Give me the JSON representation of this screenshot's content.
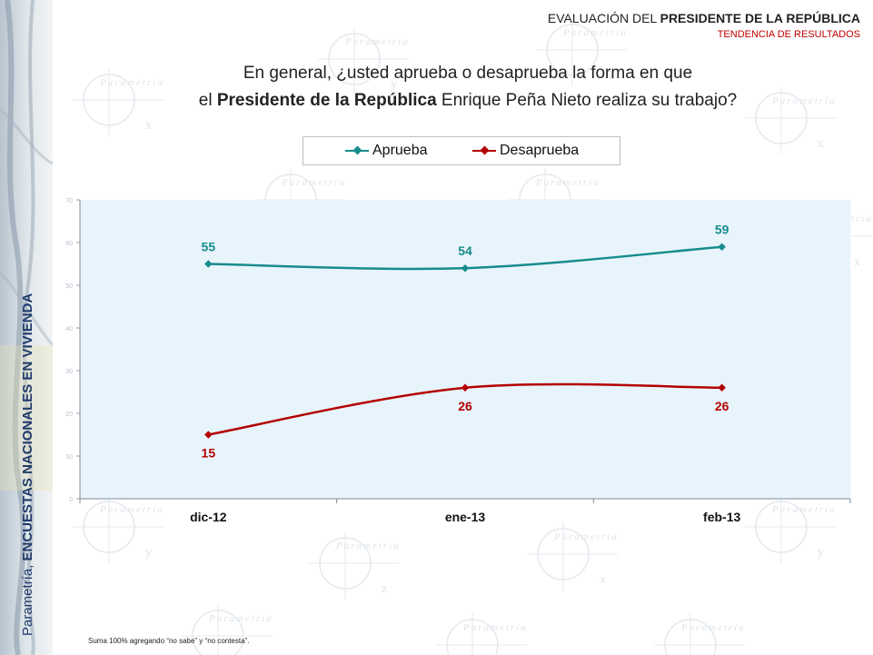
{
  "header": {
    "title_prefix": "EVALUACIÓN DEL ",
    "title_bold": "PRESIDENTE DE LA REPÚBLICA",
    "subtitle": "TENDENCIA DE RESULTADOS"
  },
  "question": {
    "line1": "En general, ¿usted aprueba o desaprueba la forma en que",
    "line2_prefix": "el ",
    "line2_bold": "Presidente de la República",
    "line2_suffix": " Enrique Peña Nieto realiza su trabajo?"
  },
  "side_label": {
    "prefix": "Parametría, ",
    "bold": "ENCUESTAS NACIONALES EN VIVIENDA"
  },
  "watermark": {
    "brand": "Parametría",
    "x_letter": "x",
    "y_letter": "y",
    "z_letter": "z"
  },
  "footnote": "Suma 100%  agregando “no sabe” y “no contesta”.",
  "colors": {
    "aprueba": "#178c8c",
    "desaprueba": "#b30000",
    "plot_bg": "#e8f4fb",
    "accent": "#c00000"
  },
  "chart_data": {
    "type": "line",
    "categories": [
      "dic-12",
      "ene-13",
      "feb-13"
    ],
    "series": [
      {
        "name": "Aprueba",
        "values": [
          55,
          54,
          59
        ],
        "color": "#178c8c"
      },
      {
        "name": "Desaprueba",
        "values": [
          15,
          26,
          26
        ],
        "color": "#b30000"
      }
    ],
    "ylim": [
      0,
      70
    ],
    "yticks": [
      0,
      10,
      20,
      30,
      40,
      50,
      60,
      70
    ],
    "legend": "top",
    "grid": false,
    "smooth": true,
    "xlabel": "",
    "ylabel": ""
  }
}
